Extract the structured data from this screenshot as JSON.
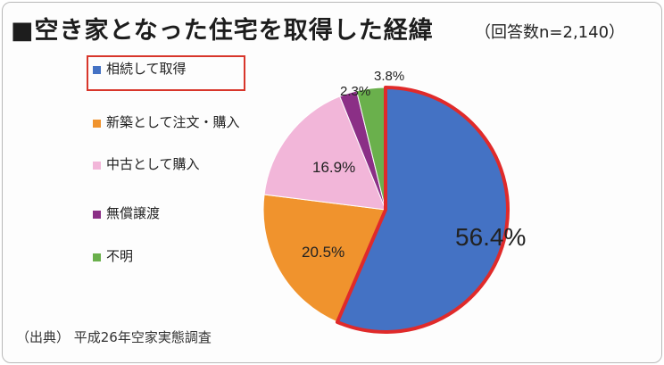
{
  "title": "■空き家となった住宅を取得した経緯",
  "sample": "（回答数n=2,140）",
  "source": "（出典） 平成26年空家実態調査",
  "chart_data": {
    "type": "pie",
    "title": "■空き家となった住宅を取得した経緯",
    "slices": [
      {
        "label": "相続して取得",
        "value": 56.4,
        "value_label": "56.4%",
        "color": "#4472c4",
        "highlighted": true
      },
      {
        "label": "新築として注文・購入",
        "value": 20.5,
        "value_label": "20.5%",
        "color": "#f0932d"
      },
      {
        "label": "中古として購入",
        "value": 16.9,
        "value_label": "16.9%",
        "color": "#f2b6d9"
      },
      {
        "label": "無償譲渡",
        "value": 2.3,
        "value_label": "2.3%",
        "color": "#8b2f86"
      },
      {
        "label": "不明",
        "value": 3.8,
        "value_label": "3.8%",
        "color": "#6ab04c"
      }
    ],
    "start": "top, clockwise",
    "legend_position": "left",
    "highlight_color": "#e02a2a"
  }
}
